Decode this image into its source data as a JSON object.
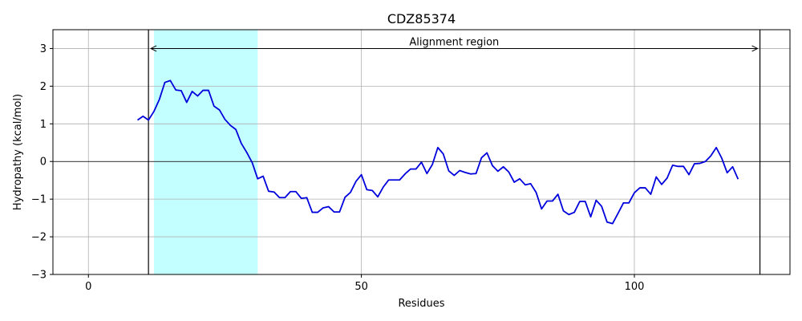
{
  "chart_data": {
    "type": "line",
    "title": "CDZ85374",
    "xlabel": "Residues",
    "ylabel": "Hydropathy (kcal/mol)",
    "xlim": [
      -6.5,
      128.5
    ],
    "ylim": [
      -3,
      3.5
    ],
    "xticks": [
      0,
      50,
      100
    ],
    "yticks": [
      -3,
      -2,
      -1,
      0,
      1,
      2,
      3
    ],
    "ytick_labels": [
      "−3",
      "−2",
      "−1",
      "0",
      "1",
      "2",
      "3"
    ],
    "grid": true,
    "zero_line": 0,
    "highlight_region": {
      "start": 12,
      "end": 31,
      "color": "#c4ffff"
    },
    "alignment_region": {
      "start": 11,
      "end": 123,
      "label": "Alignment region",
      "y": 3
    },
    "line_color": "#0000dd",
    "x": [
      9,
      10,
      11,
      12,
      13,
      14,
      15,
      16,
      17,
      18,
      19,
      20,
      21,
      22,
      23,
      24,
      25,
      26,
      27,
      28,
      29,
      30,
      31,
      32,
      33,
      34,
      35,
      36,
      37,
      38,
      39,
      40,
      41,
      42,
      43,
      44,
      45,
      46,
      47,
      48,
      49,
      50,
      51,
      52,
      53,
      54,
      55,
      56,
      57,
      58,
      59,
      60,
      61,
      62,
      63,
      64,
      65,
      66,
      67,
      68,
      69,
      70,
      71,
      72,
      73,
      74,
      75,
      76,
      77,
      78,
      79,
      80,
      81,
      82,
      83,
      84,
      85,
      86,
      87,
      88,
      89,
      90,
      91,
      92,
      93,
      94,
      95,
      96,
      97,
      98,
      99,
      100,
      101,
      102,
      103,
      104,
      105,
      106,
      107,
      108,
      109,
      110,
      111,
      112,
      113,
      114,
      115,
      116,
      117,
      118,
      119
    ],
    "y": [
      1.1,
      1.2,
      1.1,
      1.33,
      1.65,
      2.1,
      2.15,
      1.9,
      1.88,
      1.57,
      1.86,
      1.74,
      1.89,
      1.89,
      1.47,
      1.37,
      1.12,
      0.96,
      0.85,
      0.48,
      0.24,
      -0.03,
      -0.46,
      -0.39,
      -0.79,
      -0.81,
      -0.96,
      -0.96,
      -0.8,
      -0.8,
      -0.98,
      -0.96,
      -1.35,
      -1.35,
      -1.23,
      -1.2,
      -1.34,
      -1.34,
      -0.95,
      -0.82,
      -0.53,
      -0.35,
      -0.75,
      -0.77,
      -0.94,
      -0.68,
      -0.49,
      -0.49,
      -0.49,
      -0.33,
      -0.2,
      -0.2,
      -0.02,
      -0.32,
      -0.08,
      0.37,
      0.2,
      -0.25,
      -0.37,
      -0.24,
      -0.29,
      -0.33,
      -0.32,
      0.1,
      0.23,
      -0.11,
      -0.26,
      -0.14,
      -0.28,
      -0.55,
      -0.46,
      -0.62,
      -0.59,
      -0.82,
      -1.26,
      -1.05,
      -1.05,
      -0.87,
      -1.31,
      -1.41,
      -1.35,
      -1.06,
      -1.06,
      -1.47,
      -1.03,
      -1.19,
      -1.61,
      -1.65,
      -1.38,
      -1.1,
      -1.1,
      -0.83,
      -0.7,
      -0.7,
      -0.87,
      -0.41,
      -0.61,
      -0.44,
      -0.1,
      -0.13,
      -0.13,
      -0.35,
      -0.06,
      -0.05,
      0.0,
      0.15,
      0.37,
      0.09,
      -0.3,
      -0.14,
      -0.47
    ]
  }
}
